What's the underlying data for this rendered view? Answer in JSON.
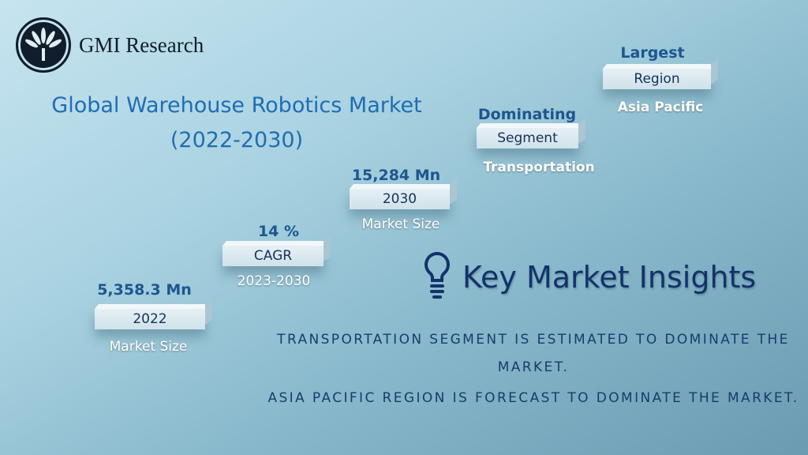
{
  "brand": {
    "name": "GMI Research"
  },
  "title": {
    "line1": "Global Warehouse Robotics Market",
    "line2": "(2022-2030)"
  },
  "steps": [
    {
      "value": "5,358.3 Mn",
      "label": "2022",
      "sub": "Market Size"
    },
    {
      "value": "14 %",
      "label": "CAGR",
      "sub": "2023-2030"
    },
    {
      "value": "15,284 Mn",
      "label": "2030",
      "sub": "Market Size"
    },
    {
      "value": "Dominating",
      "label": "Segment",
      "sub": "Transportation"
    },
    {
      "value": "Largest",
      "label": "Region",
      "sub": "Asia Pacific"
    }
  ],
  "insights": {
    "heading": "Key Market Insights",
    "icon": "lightbulb-icon",
    "items": [
      "TRANSPORTATION SEGMENT IS ESTIMATED TO DOMINATE THE MARKET.",
      "ASIA PACIFIC REGION IS FORECAST TO DOMINATE THE MARKET."
    ]
  },
  "colors": {
    "title": "#1f6db3",
    "value": "#1d568f",
    "heading": "#13326b"
  }
}
